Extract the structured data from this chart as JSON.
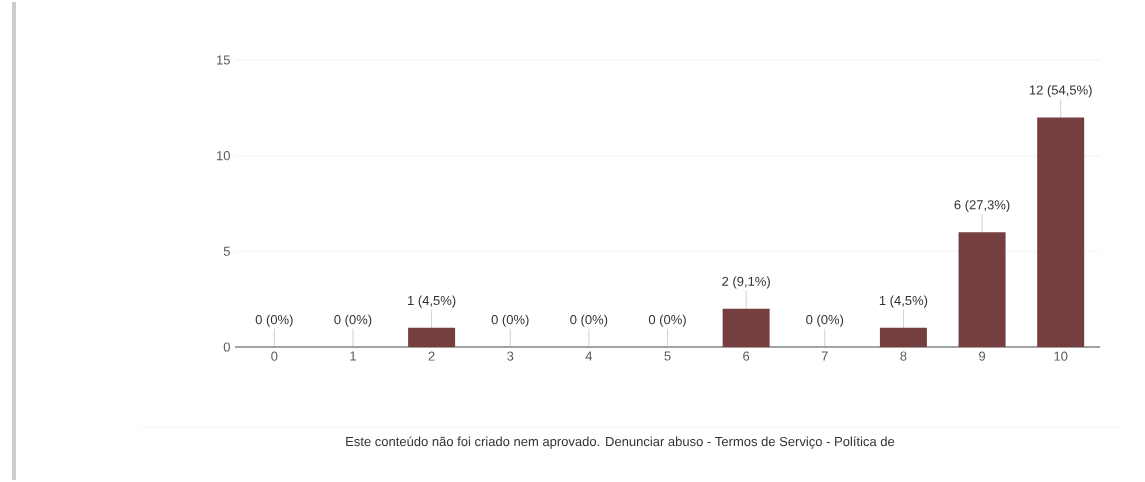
{
  "chart_data": {
    "type": "bar",
    "categories": [
      "0",
      "1",
      "2",
      "3",
      "4",
      "5",
      "6",
      "7",
      "8",
      "9",
      "10"
    ],
    "values": [
      0,
      0,
      1,
      0,
      0,
      0,
      2,
      0,
      1,
      6,
      12
    ],
    "color": "#763f3f",
    "value_labels": [
      "0 (0%)",
      "0 (0%)",
      "1 (4,5%)",
      "0 (0%)",
      "0 (0%)",
      "0 (0%)",
      "2 (9,1%)",
      "0 (0%)",
      "1 (4,5%)",
      "6 (27,3%)",
      "12 (54,5%)"
    ],
    "ylim": [
      0,
      15
    ],
    "yticks": [
      0,
      5,
      10,
      15
    ],
    "grid": "y",
    "annotations": [
      "Este conteúdo não foi criado nem aprovado. Denunciar abuso - Termos de Serviço - Política de"
    ]
  }
}
